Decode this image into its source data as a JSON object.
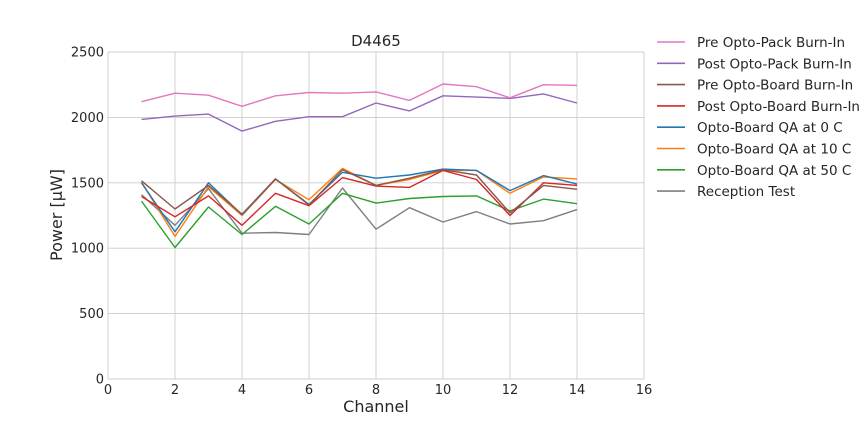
{
  "chart_data": {
    "type": "line",
    "title": "D4465",
    "xlabel": "Channel",
    "ylabel": "Power [μW]",
    "xlim": [
      0,
      16
    ],
    "ylim": [
      0,
      2500
    ],
    "xticks": [
      0,
      2,
      4,
      6,
      8,
      10,
      12,
      14,
      16
    ],
    "yticks": [
      0,
      500,
      1000,
      1500,
      2000,
      2500
    ],
    "grid": true,
    "legend_position": "outside-right-top",
    "x": [
      1,
      2,
      3,
      4,
      5,
      6,
      7,
      8,
      9,
      10,
      11,
      12,
      13,
      14
    ],
    "series": [
      {
        "name": "Pre Opto-Pack Burn-In",
        "color": "#e377c2",
        "values": [
          2120,
          2185,
          2170,
          2085,
          2165,
          2190,
          2185,
          2195,
          2130,
          2255,
          2235,
          2150,
          2250,
          2245
        ]
      },
      {
        "name": "Post Opto-Pack Burn-In",
        "color": "#9467bd",
        "values": [
          1985,
          2010,
          2025,
          1895,
          1970,
          2005,
          2005,
          2110,
          2050,
          2165,
          2155,
          2145,
          2180,
          2110
        ]
      },
      {
        "name": "Pre Opto-Board Burn-In",
        "color": "#8c564b",
        "values": [
          1515,
          1300,
          1480,
          1260,
          1530,
          1330,
          1600,
          1480,
          1535,
          1600,
          1560,
          1270,
          1480,
          1450
        ]
      },
      {
        "name": "Post Opto-Board Burn-In",
        "color": "#d62728",
        "values": [
          1395,
          1240,
          1400,
          1175,
          1420,
          1325,
          1540,
          1475,
          1465,
          1595,
          1525,
          1250,
          1500,
          1480
        ]
      },
      {
        "name": "Opto-Board QA at 0 C",
        "color": "#1f77b4",
        "values": [
          1500,
          1125,
          1500,
          1255,
          1530,
          1335,
          1580,
          1535,
          1560,
          1605,
          1595,
          1440,
          1555,
          1490
        ]
      },
      {
        "name": "Opto-Board QA at 10 C",
        "color": "#ff7f0e",
        "values": [
          1505,
          1090,
          1470,
          1250,
          1525,
          1370,
          1610,
          1480,
          1525,
          1595,
          1595,
          1420,
          1545,
          1530
        ]
      },
      {
        "name": "Opto-Board QA at 50 C",
        "color": "#2ca02c",
        "values": [
          1360,
          1005,
          1315,
          1105,
          1320,
          1185,
          1420,
          1345,
          1380,
          1395,
          1400,
          1285,
          1375,
          1340
        ]
      },
      {
        "name": "Reception Test",
        "color": "#7f7f7f",
        "values": [
          1410,
          1175,
          1455,
          1115,
          1120,
          1105,
          1460,
          1145,
          1310,
          1200,
          1280,
          1185,
          1210,
          1295
        ]
      }
    ]
  }
}
